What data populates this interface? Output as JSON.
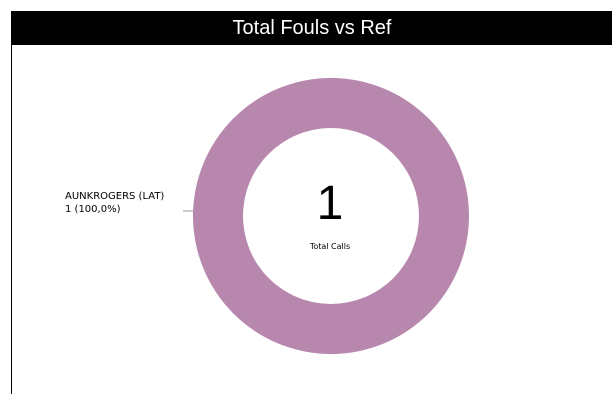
{
  "chart_data": {
    "type": "pie",
    "title": "Total Fouls vs Ref",
    "donut": true,
    "slices": [
      {
        "label": "AUNKROGERS (LAT)",
        "value": 1,
        "value_text": "1 (100,0%)",
        "color": "#b887ae"
      }
    ],
    "center": {
      "value": "1",
      "caption": "Total Calls"
    }
  }
}
